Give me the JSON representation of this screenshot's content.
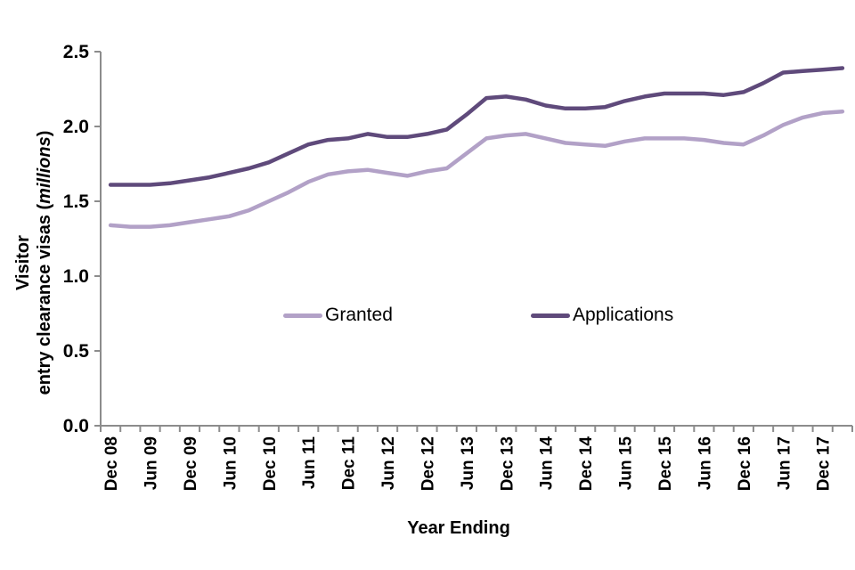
{
  "chart_data": {
    "type": "line",
    "title": "",
    "x_axis": {
      "label": "Year Ending",
      "tick_label_every": 2,
      "categories": [
        "Dec 08",
        "Mar 09",
        "Jun 09",
        "Sep 09",
        "Dec 09",
        "Mar 10",
        "Jun 10",
        "Sep 10",
        "Dec 10",
        "Mar 11",
        "Jun 11",
        "Sep 11",
        "Dec 11",
        "Mar 12",
        "Jun 12",
        "Sep 12",
        "Dec 12",
        "Mar 13",
        "Jun 13",
        "Sep 13",
        "Dec 13",
        "Mar 14",
        "Jun 14",
        "Sep 14",
        "Dec 14",
        "Mar 15",
        "Jun 15",
        "Sep 15",
        "Dec 15",
        "Mar 16",
        "Jun 16",
        "Sep 16",
        "Dec 16",
        "Mar 17",
        "Jun 17",
        "Sep 17",
        "Dec 17",
        "Mar 18"
      ],
      "visible_tick_labels": [
        "Dec 08",
        "Jun 09",
        "Dec 09",
        "Jun 10",
        "Dec 10",
        "Jun 11",
        "Dec 11",
        "Jun 12",
        "Dec 12",
        "Jun 13",
        "Dec 13",
        "Jun 14",
        "Dec 14",
        "Jun 15",
        "Dec 15",
        "Jun 16",
        "Dec 16",
        "Jun 17",
        "Dec 17"
      ]
    },
    "y_axis": {
      "label_line1": "Visitor",
      "label_line2_prefix": "entry clearance visas (",
      "label_line2_italic": "millions",
      "label_line2_suffix": ")",
      "min": 0.0,
      "max": 2.5,
      "tick_step": 0.5,
      "tick_labels": [
        "0.0",
        "0.5",
        "1.0",
        "1.5",
        "2.0",
        "2.5"
      ]
    },
    "series": [
      {
        "name": "Granted",
        "color": "#b2a1c7",
        "values": [
          1.34,
          1.33,
          1.33,
          1.34,
          1.36,
          1.38,
          1.4,
          1.44,
          1.5,
          1.56,
          1.63,
          1.68,
          1.7,
          1.71,
          1.69,
          1.67,
          1.7,
          1.72,
          1.82,
          1.92,
          1.94,
          1.95,
          1.92,
          1.89,
          1.88,
          1.87,
          1.9,
          1.92,
          1.92,
          1.92,
          1.91,
          1.89,
          1.88,
          1.94,
          2.01,
          2.06,
          2.09,
          2.1
        ]
      },
      {
        "name": "Applications",
        "color": "#5f4a7b",
        "values": [
          1.61,
          1.61,
          1.61,
          1.62,
          1.64,
          1.66,
          1.69,
          1.72,
          1.76,
          1.82,
          1.88,
          1.91,
          1.92,
          1.95,
          1.93,
          1.93,
          1.95,
          1.98,
          2.08,
          2.19,
          2.2,
          2.18,
          2.14,
          2.12,
          2.12,
          2.13,
          2.17,
          2.2,
          2.22,
          2.22,
          2.22,
          2.21,
          2.23,
          2.29,
          2.36,
          2.37,
          2.38,
          2.39
        ]
      }
    ],
    "legend": {
      "position": "inside-center",
      "items": [
        "Granted",
        "Applications"
      ]
    },
    "grid": false,
    "axis_color": "#8c8c8c",
    "text_color": "#000000"
  }
}
